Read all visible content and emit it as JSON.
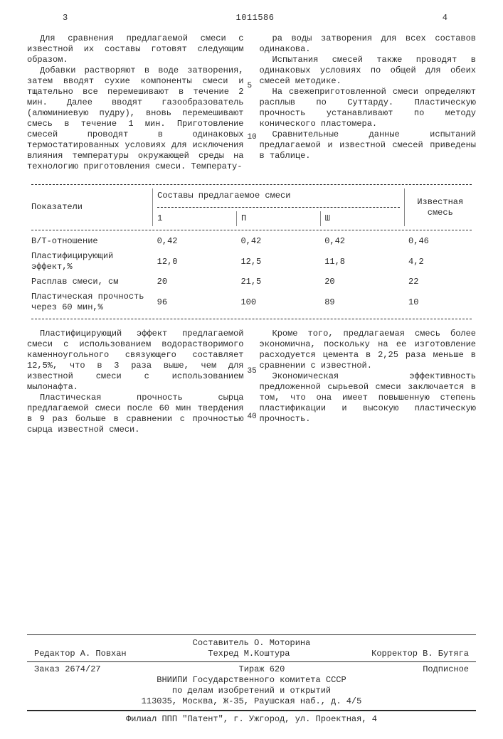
{
  "header": {
    "page_left": "3",
    "patent_no": "1011586",
    "page_right": "4"
  },
  "line_marks": {
    "m5": "5",
    "m10": "10",
    "m35": "35",
    "m40": "40"
  },
  "body": {
    "left": {
      "p1": "Для сравнения предлагаемой смеси с известной их составы готовят следующим образом.",
      "p2": "Добавки растворяют в воде затворения, затем вводят сухие компоненты смеси и тщательно все перемешивают в течение 2 мин. Далее вводят газообразователь (алюминиевую пудру), вновь перемешивают смесь в течение 1 мин. Приготовление смесей проводят в одинаковых термостатированных условиях для исключения влияния температуры окружающей среды на технологию приготовления смеси. Температу-"
    },
    "right": {
      "p1": "ра воды затворения для всех составов одинакова.",
      "p2": "Испытания смесей также проводят в одинаковых условиях по общей для обеих смесей методике.",
      "p3": "На свежеприготовленной смеси определяют расплыв по Суттарду. Пластическую прочность устанавливают по методу конического пластомера.",
      "p4": "Сравнительные данные испытаний предлагаемой и известной смесей приведены в таблице."
    }
  },
  "table": {
    "col_indicator": "Показатели",
    "group_proposed": "Составы предлагаемое смеси",
    "col_known": "Известная смесь",
    "sub1": "1",
    "sub2": "П",
    "sub3": "Ш",
    "rows": [
      {
        "label": "В/Т-отношение",
        "v1": "0,42",
        "v2": "0,42",
        "v3": "0,42",
        "vk": "0,46"
      },
      {
        "label": "Пластифицирующий эффект,%",
        "v1": "12,0",
        "v2": "12,5",
        "v3": "11,8",
        "vk": "4,2"
      },
      {
        "label": "Расплав смеси, см",
        "v1": "20",
        "v2": "21,5",
        "v3": "20",
        "vk": "22"
      },
      {
        "label": "Пластическая прочность через 60 мин,%",
        "v1": "96",
        "v2": "100",
        "v3": "89",
        "vk": "10"
      }
    ]
  },
  "after": {
    "left": {
      "p1": "Пластифицирующий эффект предлагаемой смеси с использованием водорастворимого каменноугольного связующего составляет 12,5%, что в 3 раза выше, чем для известной смеси с использованием мылонафта.",
      "p2": "Пластическая прочность сырца предлагаемой смеси после 60 мин твердения в 9 раз больше в сравнении с прочностью сырца известной смеси."
    },
    "right": {
      "p1": "Кроме того, предлагаемая смесь более экономична, поскольку на ее изготовление расходуется цемента в 2,25 раза меньше в сравнении с известной.",
      "p2": "Экономическая эффективность предложенной сырьевой смеси заключается в том, что она имеет повышенную степень пластификации и высокую пластическую прочность."
    }
  },
  "footer": {
    "compiler": "Составитель О. Моторина",
    "editor": "Редактор А. Повхан",
    "techred": "Техред М.Коштура",
    "corrector": "Корректор В. Бутяга",
    "order": "Заказ 2674/27",
    "tirazh": "Тираж 620",
    "podpisnoe": "Подписное",
    "org1": "ВНИИПИ Государственного комитета СССР",
    "org2": "по делам изобретений и открытий",
    "addr": "113035, Москва, Ж-35, Раушская наб., д. 4/5",
    "filial": "Филиал ППП \"Патент\", г. Ужгород, ул. Проектная, 4"
  }
}
